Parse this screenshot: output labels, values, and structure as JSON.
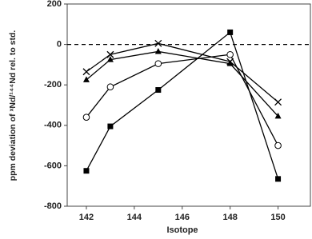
{
  "chart_data": {
    "type": "line",
    "x_label": "Isotope",
    "y_label": "ppm deviation of ˣNd/¹⁴⁴Nd rel. to std.",
    "x": [
      142,
      143,
      145,
      148,
      150
    ],
    "series": [
      {
        "marker": "square",
        "color": "#000000",
        "values": [
          -625,
          -405,
          -225,
          60,
          -665
        ]
      },
      {
        "marker": "circle-open",
        "color": "#000000",
        "values": [
          -360,
          -210,
          -95,
          -50,
          -500
        ]
      },
      {
        "marker": "triangle",
        "color": "#000000",
        "values": [
          -175,
          -75,
          -35,
          -95,
          -355
        ]
      },
      {
        "marker": "cross",
        "color": "#000000",
        "values": [
          -135,
          -50,
          5,
          -85,
          -285
        ]
      }
    ],
    "reference_line": 0,
    "xlim": [
      141.2,
      151.35
    ],
    "xticks": [
      142,
      144,
      146,
      148,
      150
    ],
    "ylim": [
      -800,
      200
    ],
    "yticks": [
      200,
      0,
      -200,
      -400,
      -600,
      -800
    ],
    "grid": false
  }
}
